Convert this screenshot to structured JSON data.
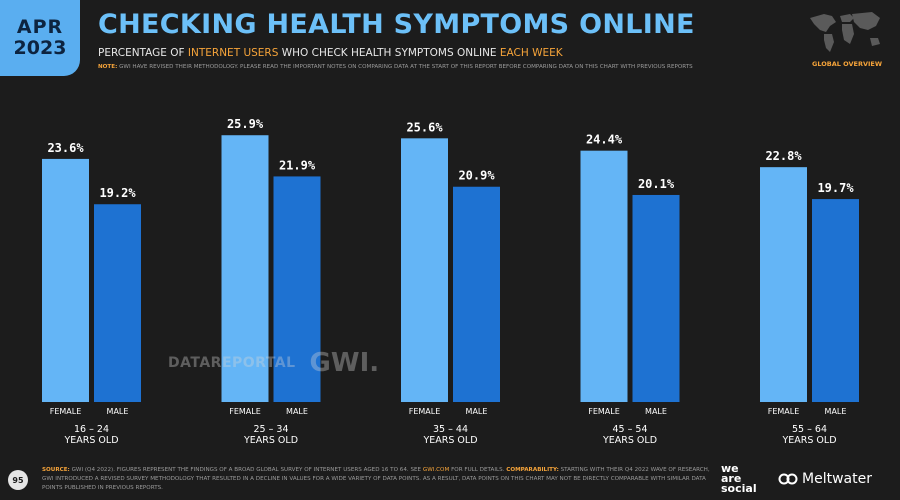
{
  "badge": {
    "month": "APR",
    "year": "2023"
  },
  "header": {
    "title": "CHECKING HEALTH SYMPTOMS ONLINE",
    "subtitle": {
      "part1": "PERCENTAGE OF ",
      "highlight1": "INTERNET USERS",
      "part2": " WHO CHECK HEALTH SYMPTOMS ONLINE ",
      "highlight2": "EACH WEEK"
    },
    "note_label": "NOTE:",
    "note_text": "GWI HAVE REVISED THEIR METHODOLOGY. PLEASE READ THE IMPORTANT NOTES ON COMPARING DATA AT THE START OF THIS REPORT BEFORE COMPARING DATA ON THIS CHART WITH PREVIOUS REPORTS",
    "global_overview": "GLOBAL OVERVIEW"
  },
  "chart_data": {
    "type": "bar",
    "categories": [
      "16 – 24",
      "25 – 34",
      "35 – 44",
      "45 – 54",
      "55 – 64"
    ],
    "category_suffix": "YEARS OLD",
    "series": [
      {
        "name": "FEMALE",
        "values": [
          23.6,
          25.9,
          25.6,
          24.4,
          22.8
        ],
        "color": "#64b5f6"
      },
      {
        "name": "MALE",
        "values": [
          19.2,
          21.9,
          20.9,
          20.1,
          19.7
        ],
        "color": "#1e72d2"
      }
    ],
    "value_format": "percent_1dp",
    "ylim": [
      0,
      30
    ],
    "grid": false
  },
  "watermark": {
    "datareportal": "DATAREPORTAL",
    "gwi": "GWI."
  },
  "footer": {
    "page_number": "95",
    "source_label": "SOURCE:",
    "source_text": "GWI (Q4 2022). FIGURES REPRESENT THE FINDINGS OF A BROAD GLOBAL SURVEY OF INTERNET USERS AGED 16 TO 64. SEE ",
    "source_link": "GWI.COM",
    "source_text2": " FOR FULL DETAILS. ",
    "comparability_label": "COMPARABILITY:",
    "comparability_text": "STARTING WITH THEIR Q4 2022 WAVE OF RESEARCH, GWI INTRODUCED A REVISED SURVEY METHODOLOGY THAT RESULTED IN A DECLINE IN VALUES FOR A WIDE VARIETY OF DATA POINTS. AS A RESULT, DATA POINTS ON THIS CHART MAY NOT BE DIRECTLY COMPARABLE WITH SIMILAR DATA POINTS PUBLISHED IN PREVIOUS REPORTS.",
    "brand_we": "we",
    "brand_are": "are",
    "brand_social": "social",
    "meltwater": "Meltwater"
  },
  "colors": {
    "background": "#1c1c1c",
    "accent_blue": "#5aaef0",
    "accent_orange": "#f6a43a"
  }
}
